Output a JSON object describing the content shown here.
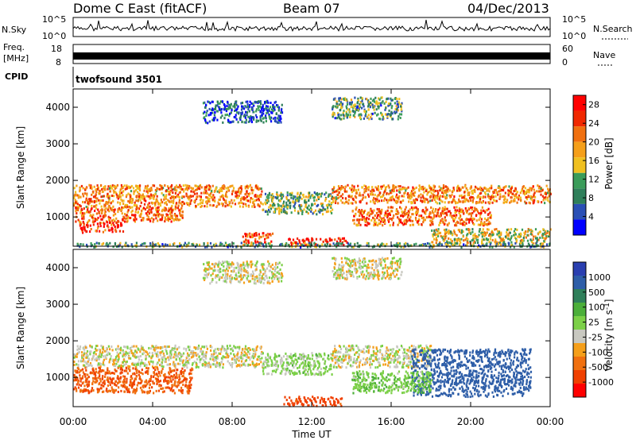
{
  "header": {
    "title": "Dome C East (fitACF)",
    "beam": "Beam 07",
    "date": "04/Dec/2013"
  },
  "nsky_panel": {
    "label": "N.Sky",
    "right_label": "N.Search",
    "tick_top": "10^5",
    "tick_bottom": "10^0"
  },
  "freq_panel": {
    "label_line1": "Freq.",
    "label_line2": "[MHz]",
    "tick_top": "18",
    "tick_bottom": "8",
    "right_tick_top": "60",
    "right_tick_bottom": "0",
    "right_label": "Nave"
  },
  "cpid": {
    "label": "CPID",
    "value": "twofsound 3501"
  },
  "colors": {
    "power_scale": [
      "#0000ff",
      "#2a4fb5",
      "#2f7f5a",
      "#3b9c5a",
      "#f0c020",
      "#f59f1a",
      "#f07010",
      "#f02800",
      "#ff0000"
    ],
    "velocity_scale": [
      "#2a3fb0",
      "#2e5ea8",
      "#2f7f5a",
      "#4caf3a",
      "#7cd048",
      "#c8c8c0",
      "#f59f1a",
      "#f07010",
      "#f04000",
      "#ff0000"
    ]
  },
  "chart_data": [
    {
      "type": "heatmap",
      "name": "power",
      "xlabel": "",
      "ylabel": "Slant Range [km]",
      "xlim": [
        "00:00",
        "24:00"
      ],
      "ylim": [
        200,
        4500
      ],
      "x_ticks": [
        "00:00",
        "04:00",
        "08:00",
        "12:00",
        "16:00",
        "20:00",
        "00:00"
      ],
      "y_ticks": [
        1000,
        2000,
        3000,
        4000
      ],
      "colorbar": {
        "label": "Power [dB]",
        "ticks": [
          "4",
          "8",
          "12",
          "16",
          "20",
          "24",
          "28"
        ],
        "range": [
          0,
          30
        ]
      },
      "regions": [
        {
          "t0": 0.0,
          "t1": 9.5,
          "r0": 1300,
          "r1": 1900,
          "level": 20
        },
        {
          "t0": 0.0,
          "t1": 5.5,
          "r0": 900,
          "r1": 1300,
          "level": 22
        },
        {
          "t0": 0.3,
          "t1": 2.5,
          "r0": 600,
          "r1": 900,
          "level": 26
        },
        {
          "t0": 9.5,
          "t1": 13.0,
          "r0": 1100,
          "r1": 1700,
          "level": 12
        },
        {
          "t0": 10.8,
          "t1": 13.8,
          "r0": 250,
          "r1": 450,
          "level": 28
        },
        {
          "t0": 8.5,
          "t1": 10.0,
          "r0": 300,
          "r1": 600,
          "level": 24
        },
        {
          "t0": 13.0,
          "t1": 24.0,
          "r0": 1400,
          "r1": 1900,
          "level": 20
        },
        {
          "t0": 14.0,
          "t1": 21.0,
          "r0": 800,
          "r1": 1300,
          "level": 22
        },
        {
          "t0": 18.0,
          "t1": 24.0,
          "r0": 300,
          "r1": 700,
          "level": 16
        },
        {
          "t0": 6.5,
          "t1": 10.5,
          "r0": 3600,
          "r1": 4200,
          "level": 6
        },
        {
          "t0": 13.0,
          "t1": 16.5,
          "r0": 3700,
          "r1": 4300,
          "level": 10
        },
        {
          "t0": 0.0,
          "t1": 24.0,
          "r0": 200,
          "r1": 320,
          "level": 10
        }
      ]
    },
    {
      "type": "heatmap",
      "name": "velocity",
      "xlabel": "Time UT",
      "ylabel": "Slant Range [km]",
      "xlim": [
        "00:00",
        "24:00"
      ],
      "ylim": [
        200,
        4500
      ],
      "x_ticks": [
        "00:00",
        "04:00",
        "08:00",
        "12:00",
        "16:00",
        "20:00",
        "00:00"
      ],
      "y_ticks": [
        1000,
        2000,
        3000,
        4000
      ],
      "colorbar": {
        "label": "Velocity [m s^-1]",
        "ticks": [
          "1000",
          "500",
          "100",
          "25",
          "-25",
          "-100",
          "-500",
          "-1000"
        ]
      },
      "regions": [
        {
          "t0": 0.0,
          "t1": 9.5,
          "r0": 1300,
          "r1": 1900,
          "level": 0
        },
        {
          "t0": 0.0,
          "t1": 6.0,
          "r0": 600,
          "r1": 1300,
          "level": -250
        },
        {
          "t0": 9.5,
          "t1": 13.0,
          "r0": 1100,
          "r1": 1700,
          "level": 50
        },
        {
          "t0": 10.5,
          "t1": 13.5,
          "r0": 250,
          "r1": 500,
          "level": -300
        },
        {
          "t0": 13.0,
          "t1": 18.0,
          "r0": 1300,
          "r1": 1900,
          "level": 0
        },
        {
          "t0": 17.0,
          "t1": 23.0,
          "r0": 500,
          "r1": 1800,
          "level": 600
        },
        {
          "t0": 14.0,
          "t1": 18.0,
          "r0": 600,
          "r1": 1200,
          "level": 80
        },
        {
          "t0": 6.5,
          "t1": 10.5,
          "r0": 3600,
          "r1": 4200,
          "level": 0
        },
        {
          "t0": 13.0,
          "t1": 16.5,
          "r0": 3700,
          "r1": 4300,
          "level": 0
        }
      ]
    }
  ]
}
